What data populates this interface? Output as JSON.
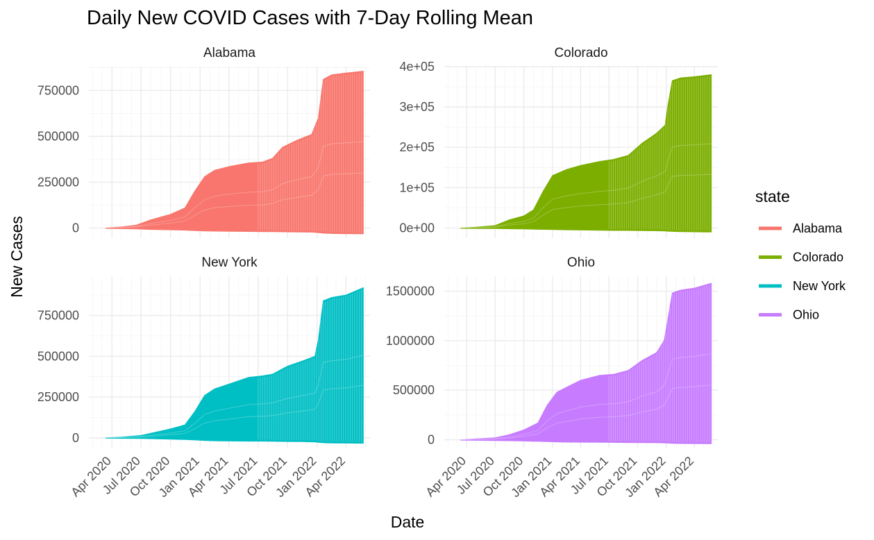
{
  "chart_data": {
    "type": "area",
    "title": "Daily New COVID Cases with 7-Day Rolling Mean",
    "xlabel": "Date",
    "ylabel": "New Cases",
    "x_tick_labels": [
      "Apr 2020",
      "Jul 2020",
      "Oct 2020",
      "Jan 2021",
      "Apr 2021",
      "Jul 2021",
      "Oct 2021",
      "Jan 2022",
      "Apr 2022"
    ],
    "x_tick_dates": [
      "2020-04-01",
      "2020-07-01",
      "2020-10-01",
      "2021-01-01",
      "2021-04-01",
      "2021-07-01",
      "2021-10-01",
      "2022-01-01",
      "2022-04-01"
    ],
    "xlim": [
      "2020-01-20",
      "2022-06-15"
    ],
    "grid": true,
    "legend": {
      "title": "state",
      "placement": "right",
      "entries": [
        {
          "label": "Alabama",
          "color": "#F8766D"
        },
        {
          "label": "Colorado",
          "color": "#7CAE00"
        },
        {
          "label": "New York",
          "color": "#00BFC4"
        },
        {
          "label": "Ohio",
          "color": "#C77CFF"
        }
      ]
    },
    "panels": [
      {
        "name": "Alabama",
        "color": "#F8766D",
        "ylim": [
          -55000,
          880000
        ],
        "y_ticks": [
          0,
          250000,
          500000,
          750000
        ],
        "y_tick_labels": [
          "0",
          "250000",
          "500000",
          "750000"
        ],
        "x": [
          "2020-03-13",
          "2020-05-01",
          "2020-06-15",
          "2020-08-01",
          "2020-10-01",
          "2020-11-15",
          "2020-12-15",
          "2021-01-15",
          "2021-02-15",
          "2021-04-01",
          "2021-06-01",
          "2021-07-15",
          "2021-08-15",
          "2021-09-15",
          "2021-11-01",
          "2021-12-15",
          "2022-01-05",
          "2022-01-20",
          "2022-02-15",
          "2022-04-01",
          "2022-05-25"
        ],
        "values": [
          0,
          6000,
          15000,
          45000,
          75000,
          110000,
          200000,
          280000,
          315000,
          335000,
          355000,
          360000,
          380000,
          440000,
          480000,
          510000,
          600000,
          810000,
          835000,
          845000,
          855000
        ],
        "lower": [
          -3000,
          -4000,
          -5000,
          -8000,
          -10000,
          -12000,
          -14000,
          -16000,
          -17000,
          -18000,
          -19000,
          -20000,
          -20000,
          -21000,
          -22000,
          -23000,
          -25000,
          -28000,
          -30000,
          -31000,
          -32000
        ]
      },
      {
        "name": "Colorado",
        "color": "#7CAE00",
        "ylim": [
          -25000,
          400000
        ],
        "y_ticks": [
          0,
          100000,
          200000,
          300000,
          400000
        ],
        "y_tick_labels": [
          "0e+00",
          "1e+05",
          "2e+05",
          "3e+05",
          "4e+05"
        ],
        "x": [
          "2020-03-13",
          "2020-05-01",
          "2020-07-01",
          "2020-08-15",
          "2020-10-01",
          "2020-11-01",
          "2020-12-01",
          "2021-01-01",
          "2021-02-15",
          "2021-04-01",
          "2021-06-01",
          "2021-07-15",
          "2021-09-01",
          "2021-10-15",
          "2021-12-01",
          "2021-12-28",
          "2022-01-05",
          "2022-01-20",
          "2022-02-15",
          "2022-04-01",
          "2022-05-25"
        ],
        "values": [
          0,
          2000,
          6000,
          20000,
          30000,
          45000,
          90000,
          130000,
          145000,
          155000,
          165000,
          170000,
          180000,
          210000,
          235000,
          255000,
          300000,
          365000,
          372000,
          375000,
          380000
        ],
        "lower": [
          -1000,
          -1200,
          -1500,
          -2000,
          -2500,
          -3000,
          -3500,
          -4000,
          -4500,
          -5000,
          -5500,
          -6000,
          -6000,
          -6500,
          -7000,
          -7500,
          -8000,
          -8500,
          -9000,
          -9500,
          -10000
        ]
      },
      {
        "name": "New York",
        "color": "#00BFC4",
        "ylim": [
          -60000,
          990000
        ],
        "y_ticks": [
          0,
          250000,
          500000,
          750000
        ],
        "y_tick_labels": [
          "0",
          "250000",
          "500000",
          "750000"
        ],
        "x": [
          "2020-03-13",
          "2020-05-01",
          "2020-07-01",
          "2020-08-15",
          "2020-10-01",
          "2020-11-15",
          "2020-12-15",
          "2021-01-15",
          "2021-02-15",
          "2021-04-01",
          "2021-06-01",
          "2021-07-15",
          "2021-08-15",
          "2021-10-01",
          "2021-11-15",
          "2021-12-25",
          "2022-01-05",
          "2022-01-20",
          "2022-02-15",
          "2022-04-01",
          "2022-05-25"
        ],
        "values": [
          0,
          5000,
          15000,
          35000,
          55000,
          80000,
          160000,
          260000,
          300000,
          330000,
          370000,
          380000,
          390000,
          440000,
          470000,
          500000,
          600000,
          840000,
          860000,
          875000,
          920000
        ],
        "lower": [
          -2000,
          -3000,
          -4000,
          -6000,
          -8000,
          -10000,
          -13000,
          -16000,
          -18000,
          -19000,
          -20000,
          -20000,
          -21000,
          -22000,
          -23000,
          -25000,
          -27000,
          -30000,
          -31000,
          -32000,
          -33000
        ]
      },
      {
        "name": "Ohio",
        "color": "#C77CFF",
        "ylim": [
          -80000,
          1650000
        ],
        "y_ticks": [
          0,
          500000,
          1000000,
          1500000
        ],
        "y_tick_labels": [
          "0",
          "500000",
          "1000000",
          "1500000"
        ],
        "x": [
          "2020-03-13",
          "2020-05-01",
          "2020-07-01",
          "2020-08-15",
          "2020-10-01",
          "2020-11-15",
          "2020-12-15",
          "2021-01-15",
          "2021-02-15",
          "2021-04-01",
          "2021-06-01",
          "2021-07-15",
          "2021-09-01",
          "2021-10-15",
          "2021-12-01",
          "2021-12-25",
          "2022-01-05",
          "2022-01-20",
          "2022-02-15",
          "2022-04-01",
          "2022-05-25"
        ],
        "values": [
          0,
          10000,
          20000,
          50000,
          100000,
          170000,
          350000,
          480000,
          530000,
          600000,
          650000,
          660000,
          700000,
          800000,
          880000,
          1000000,
          1200000,
          1480000,
          1510000,
          1530000,
          1580000
        ],
        "lower": [
          -5000,
          -6000,
          -8000,
          -10000,
          -13000,
          -16000,
          -19000,
          -22000,
          -24000,
          -25000,
          -26000,
          -27000,
          -28000,
          -29000,
          -30000,
          -32000,
          -34000,
          -36000,
          -38000,
          -39000,
          -40000
        ]
      }
    ]
  }
}
